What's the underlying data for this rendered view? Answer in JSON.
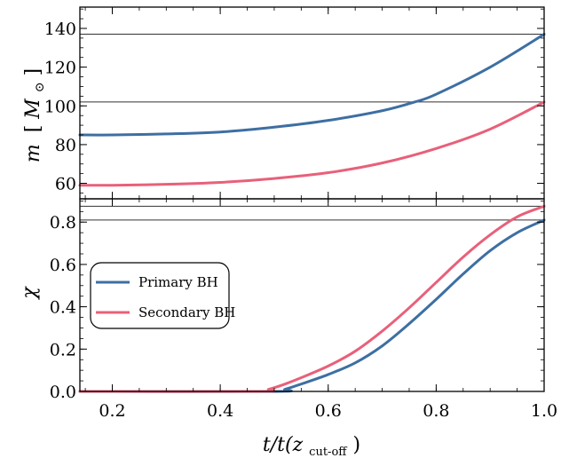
{
  "chart_data": [
    {
      "type": "line",
      "ylabel": "m [M⊙]",
      "xlim": [
        0.14,
        1.0
      ],
      "ylim": [
        52,
        151
      ],
      "yticks": [
        60,
        80,
        100,
        120,
        140
      ],
      "xticks": [
        0.2,
        0.4,
        0.6,
        0.8,
        1.0
      ],
      "reference_lines": [
        137,
        102
      ],
      "series": [
        {
          "name": "Primary BH",
          "color": "#3d6fa3",
          "x": [
            0.14,
            0.2,
            0.3,
            0.4,
            0.5,
            0.6,
            0.7,
            0.76,
            0.8,
            0.9,
            1.0
          ],
          "y": [
            85,
            85,
            85.5,
            86.5,
            89,
            92.5,
            97.5,
            102,
            106,
            120,
            137
          ]
        },
        {
          "name": "Secondary BH",
          "color": "#e8607a",
          "x": [
            0.14,
            0.2,
            0.3,
            0.4,
            0.5,
            0.6,
            0.7,
            0.8,
            0.9,
            1.0
          ],
          "y": [
            59,
            59,
            59.5,
            60.5,
            62.5,
            65.5,
            70.5,
            78,
            88,
            102
          ]
        }
      ]
    },
    {
      "type": "line",
      "ylabel": "χ",
      "xlabel": "t/t(z_cut-off)",
      "xlim": [
        0.14,
        1.0
      ],
      "ylim": [
        0,
        0.91
      ],
      "yticks": [
        0.0,
        0.2,
        0.4,
        0.6,
        0.8
      ],
      "xticks": [
        0.2,
        0.4,
        0.6,
        0.8,
        1.0
      ],
      "reference_lines": [
        0.81,
        0.875
      ],
      "legend_position": "middle-left",
      "series": [
        {
          "name": "Primary BH",
          "color": "#3d6fa3",
          "x": [
            0.14,
            0.5,
            0.52,
            0.55,
            0.6,
            0.65,
            0.7,
            0.75,
            0.8,
            0.85,
            0.9,
            0.95,
            1.0
          ],
          "y": [
            0.0,
            0.0,
            0.01,
            0.035,
            0.08,
            0.135,
            0.215,
            0.32,
            0.435,
            0.555,
            0.665,
            0.75,
            0.81
          ]
        },
        {
          "name": "Secondary BH",
          "color": "#e8607a",
          "x": [
            0.14,
            0.47,
            0.49,
            0.52,
            0.55,
            0.6,
            0.65,
            0.7,
            0.75,
            0.8,
            0.85,
            0.9,
            0.95,
            1.0
          ],
          "y": [
            0.0,
            0.0,
            0.01,
            0.035,
            0.065,
            0.12,
            0.19,
            0.285,
            0.395,
            0.515,
            0.635,
            0.74,
            0.825,
            0.875
          ]
        }
      ]
    }
  ],
  "labels": {
    "top_ylabel_main": "m",
    "top_ylabel_unit_open": "[",
    "top_ylabel_unit": "M",
    "top_ylabel_unit_sub": "⊙",
    "top_ylabel_unit_close": "]",
    "bottom_ylabel": "χ",
    "xlabel_main": "t/t(z",
    "xlabel_sub": "cut-off",
    "xlabel_close": ")"
  },
  "legend": {
    "items": [
      {
        "label": "Primary BH",
        "color": "#3d6fa3"
      },
      {
        "label": "Secondary BH",
        "color": "#e8607a"
      }
    ]
  }
}
